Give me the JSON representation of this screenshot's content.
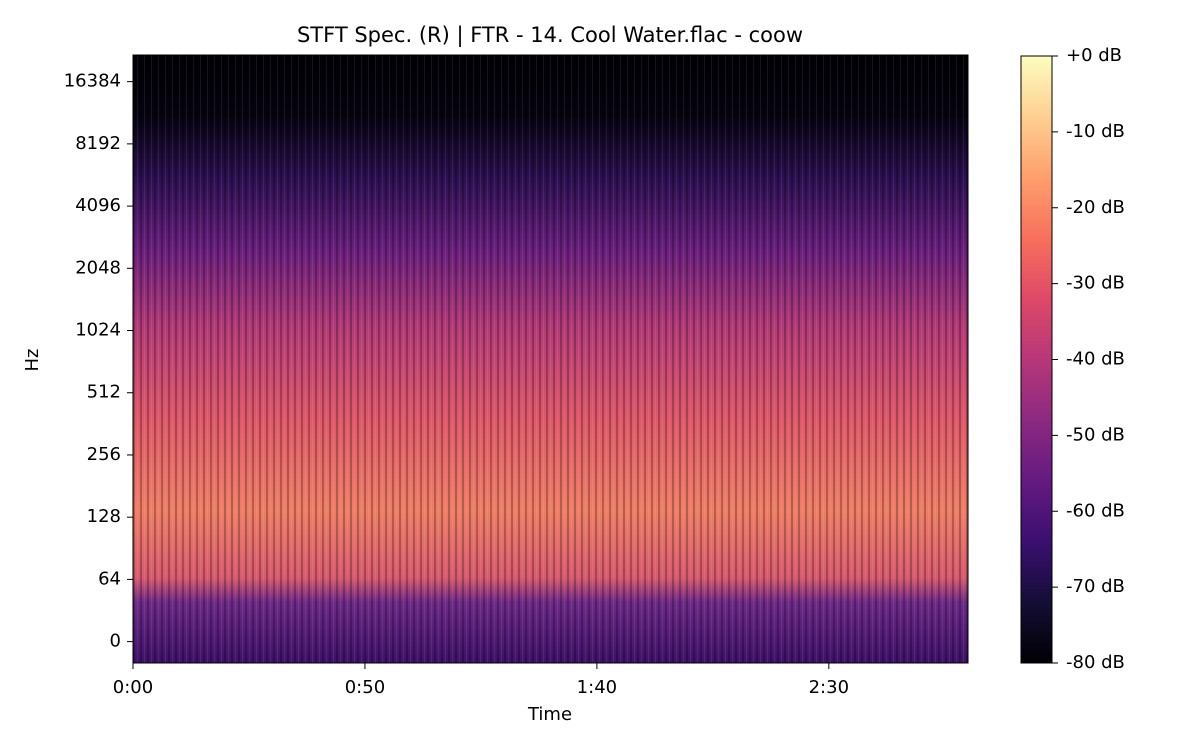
{
  "chart_data": {
    "type": "spectrogram",
    "title": "STFT Spec. (R) | FTR - 14. Cool Water.flac - coow",
    "xlabel": "Time",
    "ylabel": "Hz",
    "xlim": [
      0,
      180
    ],
    "xticks": [
      {
        "value": 0,
        "label": "0:00"
      },
      {
        "value": 50,
        "label": "0:50"
      },
      {
        "value": 100,
        "label": "1:40"
      },
      {
        "value": 150,
        "label": "2:30"
      }
    ],
    "yscale": "symlog",
    "linthresh": 64,
    "ylim": [
      -22,
      22050
    ],
    "yticks": [
      0,
      64,
      128,
      256,
      512,
      1024,
      2048,
      4096,
      8192,
      16384
    ],
    "colormap": "magma",
    "clim": [
      -80,
      0
    ],
    "cticks": [
      {
        "value": 0,
        "label": "+0 dB"
      },
      {
        "value": -10,
        "label": "-10 dB"
      },
      {
        "value": -20,
        "label": "-20 dB"
      },
      {
        "value": -30,
        "label": "-30 dB"
      },
      {
        "value": -40,
        "label": "-40 dB"
      },
      {
        "value": -50,
        "label": "-50 dB"
      },
      {
        "value": -60,
        "label": "-60 dB"
      },
      {
        "value": -70,
        "label": "-70 dB"
      },
      {
        "value": -80,
        "label": "-80 dB"
      }
    ]
  }
}
